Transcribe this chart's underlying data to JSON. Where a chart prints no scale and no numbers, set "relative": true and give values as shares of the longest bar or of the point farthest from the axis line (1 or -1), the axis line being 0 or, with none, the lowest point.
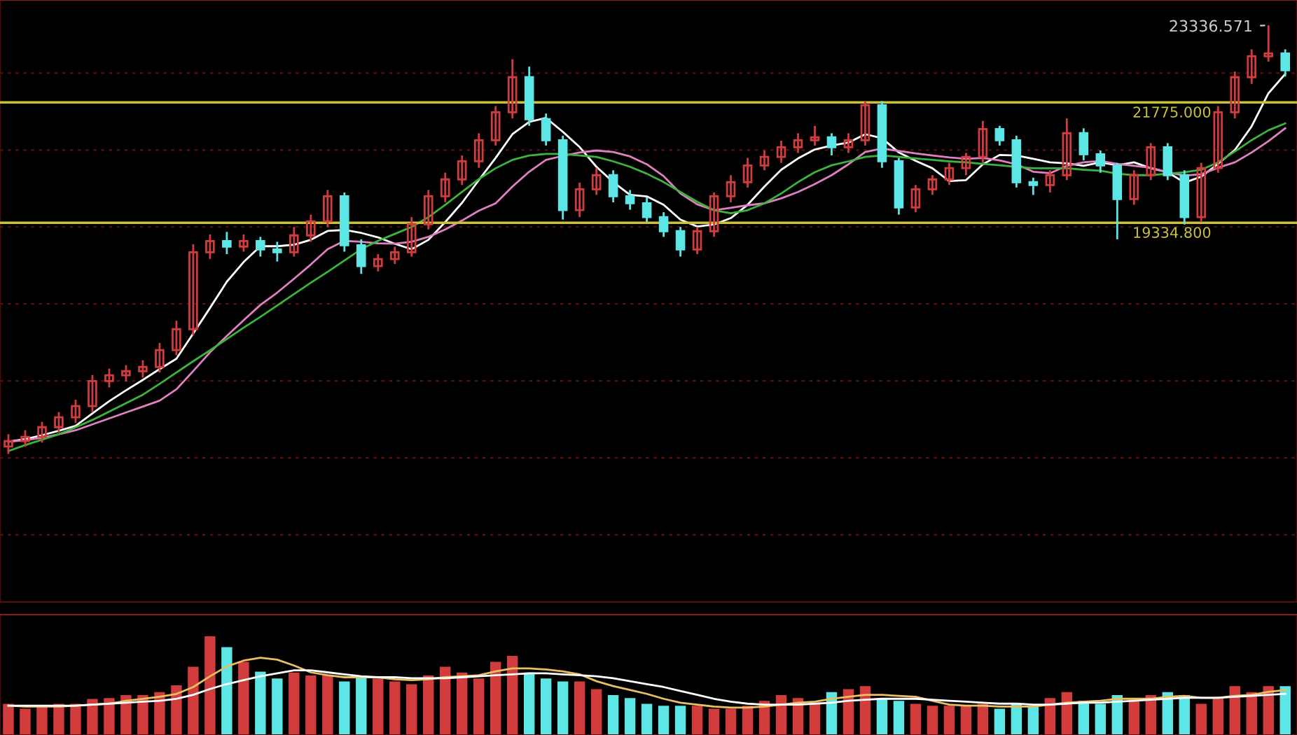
{
  "chart_data": [
    {
      "type": "candlestick",
      "grid": "y",
      "categories": [
        null,
        null,
        null,
        null,
        null,
        null,
        null,
        null,
        null,
        null,
        null,
        null,
        null,
        null,
        null,
        null,
        null,
        null,
        null,
        null,
        null,
        null,
        null,
        null,
        null,
        null,
        null,
        null,
        null,
        null,
        null,
        null,
        null,
        null,
        null,
        null,
        null,
        null,
        null,
        null,
        null,
        null,
        null,
        null,
        null,
        null,
        null,
        null,
        null,
        null,
        null,
        null,
        null,
        null,
        null,
        null,
        null,
        null,
        null,
        null,
        null,
        null,
        null,
        null,
        null,
        null,
        null,
        null,
        null,
        null,
        null,
        null,
        null,
        null,
        null,
        null,
        null
      ],
      "ylim": [
        11650,
        23850
      ],
      "yticks": [
        {
          "value": 13010,
          "label": null
        },
        {
          "value": 14570,
          "label": null
        },
        {
          "value": 16130,
          "label": null
        },
        {
          "value": 17690,
          "label": null
        },
        {
          "value": 19250,
          "label": null
        },
        {
          "value": 20810,
          "label": null
        },
        {
          "value": 22370,
          "label": null
        }
      ],
      "ohlc": [
        [
          14800,
          15050,
          14650,
          14910
        ],
        [
          14910,
          15130,
          14800,
          14995
        ],
        [
          14995,
          15300,
          14880,
          15193
        ],
        [
          15193,
          15500,
          15080,
          15392
        ],
        [
          15392,
          15750,
          15280,
          15619
        ],
        [
          15619,
          16250,
          15500,
          16129
        ],
        [
          16129,
          16380,
          16000,
          16243
        ],
        [
          16243,
          16450,
          16120,
          16328
        ],
        [
          16328,
          16550,
          16200,
          16413
        ],
        [
          16413,
          16900,
          16300,
          16754
        ],
        [
          16754,
          17350,
          16650,
          17179
        ],
        [
          17179,
          18900,
          17050,
          18739
        ],
        [
          18739,
          19100,
          18600,
          18966
        ],
        [
          18966,
          19150,
          18700,
          18853
        ],
        [
          18853,
          19100,
          18750,
          18966
        ],
        [
          18966,
          19050,
          18650,
          18796
        ],
        [
          18796,
          18950,
          18550,
          18739
        ],
        [
          18739,
          19250,
          18650,
          19080
        ],
        [
          19080,
          19500,
          18950,
          19364
        ],
        [
          19364,
          20000,
          19250,
          19874
        ],
        [
          19874,
          19950,
          18750,
          18881
        ],
        [
          18881,
          19000,
          18300,
          18456
        ],
        [
          18456,
          18700,
          18350,
          18598
        ],
        [
          18598,
          18850,
          18500,
          18739
        ],
        [
          18739,
          19450,
          18650,
          19307
        ],
        [
          19307,
          20000,
          19200,
          19874
        ],
        [
          19874,
          20350,
          19750,
          20215
        ],
        [
          20215,
          20700,
          20100,
          20583
        ],
        [
          20583,
          21150,
          20450,
          21009
        ],
        [
          21009,
          21700,
          20900,
          21576
        ],
        [
          21576,
          22650,
          21450,
          22286
        ],
        [
          22286,
          22500,
          21300,
          21435
        ],
        [
          21435,
          21550,
          20900,
          21009
        ],
        [
          21009,
          21100,
          19400,
          19591
        ],
        [
          19591,
          20150,
          19450,
          20016
        ],
        [
          20016,
          20450,
          19900,
          20300
        ],
        [
          20300,
          20400,
          19750,
          19874
        ],
        [
          19874,
          20000,
          19600,
          19732
        ],
        [
          19732,
          19850,
          19350,
          19449
        ],
        [
          19449,
          19550,
          19050,
          19165
        ],
        [
          19165,
          19250,
          18650,
          18796
        ],
        [
          18796,
          19250,
          18700,
          19165
        ],
        [
          19165,
          19950,
          19050,
          19874
        ],
        [
          19874,
          20300,
          19750,
          20158
        ],
        [
          20158,
          20650,
          20050,
          20498
        ],
        [
          20498,
          20800,
          20400,
          20669
        ],
        [
          20669,
          21000,
          20550,
          20867
        ],
        [
          20867,
          21150,
          20750,
          21009
        ],
        [
          21009,
          21300,
          20900,
          21066
        ],
        [
          21066,
          21150,
          20700,
          20867
        ],
        [
          20867,
          21150,
          20750,
          21009
        ],
        [
          21009,
          21800,
          20900,
          21718
        ],
        [
          21718,
          21800,
          20450,
          20583
        ],
        [
          20583,
          20650,
          19500,
          19647
        ],
        [
          19647,
          20100,
          19550,
          20016
        ],
        [
          20016,
          20300,
          19900,
          20215
        ],
        [
          20215,
          20550,
          20100,
          20442
        ],
        [
          20442,
          20750,
          20300,
          20669
        ],
        [
          20669,
          21400,
          20550,
          21236
        ],
        [
          21236,
          21300,
          20900,
          21009
        ],
        [
          21009,
          21100,
          20050,
          20158
        ],
        [
          20158,
          20250,
          19900,
          20101
        ],
        [
          20101,
          20400,
          19950,
          20300
        ],
        [
          20300,
          21450,
          20200,
          21151
        ],
        [
          21151,
          21250,
          20600,
          20725
        ],
        [
          20725,
          20800,
          20350,
          20498
        ],
        [
          20498,
          20550,
          19000,
          19817
        ],
        [
          19817,
          20400,
          19700,
          20300
        ],
        [
          20300,
          20950,
          20200,
          20867
        ],
        [
          20867,
          20950,
          20200,
          20300
        ],
        [
          20300,
          20400,
          19300,
          19449
        ],
        [
          19449,
          20550,
          19350,
          20442
        ],
        [
          20442,
          21700,
          20350,
          21576
        ],
        [
          21576,
          22400,
          21450,
          22286
        ],
        [
          22286,
          22850,
          22150,
          22711
        ],
        [
          22711,
          23336.571,
          22600,
          22768
        ],
        [
          22768,
          22850,
          22300,
          22428
        ]
      ],
      "colors": [
        "#d23c3c",
        "#d23c3c",
        "#d23c3c",
        "#d23c3c",
        "#d23c3c",
        "#d23c3c",
        "#d23c3c",
        "#d23c3c",
        "#d23c3c",
        "#d23c3c",
        "#d23c3c",
        "#d23c3c",
        "#d23c3c",
        "#5ce6e6",
        "#d23c3c",
        "#5ce6e6",
        "#5ce6e6",
        "#d23c3c",
        "#d23c3c",
        "#d23c3c",
        "#5ce6e6",
        "#5ce6e6",
        "#d23c3c",
        "#d23c3c",
        "#d23c3c",
        "#d23c3c",
        "#d23c3c",
        "#d23c3c",
        "#d23c3c",
        "#d23c3c",
        "#d23c3c",
        "#5ce6e6",
        "#5ce6e6",
        "#5ce6e6",
        "#d23c3c",
        "#d23c3c",
        "#5ce6e6",
        "#5ce6e6",
        "#5ce6e6",
        "#5ce6e6",
        "#5ce6e6",
        "#d23c3c",
        "#d23c3c",
        "#d23c3c",
        "#d23c3c",
        "#d23c3c",
        "#d23c3c",
        "#d23c3c",
        "#d23c3c",
        "#5ce6e6",
        "#d23c3c",
        "#d23c3c",
        "#5ce6e6",
        "#5ce6e6",
        "#d23c3c",
        "#d23c3c",
        "#d23c3c",
        "#d23c3c",
        "#d23c3c",
        "#5ce6e6",
        "#5ce6e6",
        "#5ce6e6",
        "#d23c3c",
        "#d23c3c",
        "#5ce6e6",
        "#5ce6e6",
        "#5ce6e6",
        "#d23c3c",
        "#d23c3c",
        "#5ce6e6",
        "#5ce6e6",
        "#d23c3c",
        "#d23c3c",
        "#d23c3c",
        "#d23c3c",
        "#d23c3c",
        "#5ce6e6"
      ],
      "series": [
        {
          "type": "line",
          "color": "#ffffff",
          "values": [
            14900,
            14950,
            15030,
            15120,
            15220,
            15470,
            15720,
            15940,
            16150,
            16370,
            16580,
            17090,
            17610,
            18140,
            18540,
            18860,
            18860,
            18890,
            18990,
            19170,
            19190,
            19130,
            19040,
            18910,
            18800,
            18990,
            19350,
            19740,
            20200,
            20650,
            21130,
            21380,
            21460,
            21180,
            20870,
            20470,
            20160,
            19900,
            19870,
            19700,
            19400,
            19260,
            19300,
            19430,
            19700,
            20070,
            20410,
            20640,
            20820,
            20900,
            20960,
            21130,
            21050,
            20760,
            20590,
            20440,
            20180,
            20200,
            20520,
            20710,
            20700,
            20630,
            20560,
            20540,
            20490,
            20560,
            20500,
            20560,
            20440,
            20360,
            20150,
            20270,
            20530,
            20810,
            21290,
            21960,
            22350
          ]
        },
        {
          "type": "line",
          "color": "#e080c0",
          "values": [
            14900,
            14930,
            14980,
            15050,
            15130,
            15250,
            15370,
            15490,
            15610,
            15730,
            15960,
            16330,
            16710,
            17040,
            17360,
            17670,
            17920,
            18200,
            18490,
            18800,
            18970,
            18950,
            18920,
            18910,
            18950,
            19050,
            19200,
            19380,
            19580,
            19730,
            20070,
            20370,
            20610,
            20690,
            20760,
            20800,
            20770,
            20680,
            20520,
            20280,
            19930,
            19710,
            19590,
            19640,
            19690,
            19730,
            19830,
            19960,
            20120,
            20300,
            20520,
            20770,
            20840,
            20790,
            20740,
            20700,
            20660,
            20630,
            20650,
            20600,
            20520,
            20370,
            20340,
            20490,
            20560,
            20590,
            20530,
            20490,
            20450,
            20360,
            20290,
            20320,
            20450,
            20560,
            20760,
            20990,
            21250
          ]
        },
        {
          "type": "line",
          "color": "#3cb43c",
          "values": [
            14710,
            14830,
            14940,
            15050,
            15190,
            15340,
            15510,
            15680,
            15850,
            16070,
            16300,
            16530,
            16750,
            16980,
            17210,
            17430,
            17660,
            17890,
            18120,
            18340,
            18570,
            18800,
            18970,
            19110,
            19250,
            19450,
            19700,
            19960,
            20220,
            20440,
            20610,
            20700,
            20730,
            20730,
            20700,
            20670,
            20580,
            20470,
            20330,
            20160,
            19960,
            19760,
            19590,
            19530,
            19590,
            19730,
            19930,
            20160,
            20360,
            20500,
            20580,
            20670,
            20700,
            20670,
            20640,
            20610,
            20580,
            20560,
            20530,
            20500,
            20470,
            20440,
            20440,
            20440,
            20410,
            20390,
            20330,
            20300,
            20300,
            20330,
            20360,
            20410,
            20560,
            20780,
            21010,
            21210,
            21350
          ]
        }
      ],
      "ref_lines": [
        {
          "axis": "y",
          "value": 21775,
          "label": "21775.000",
          "color": "#c8c03c"
        },
        {
          "axis": "y",
          "value": 19334.8,
          "label": "19334.800",
          "color": "#c8c03c"
        }
      ],
      "annotations": [
        "23336.571"
      ]
    },
    {
      "type": "bar",
      "relative": true,
      "categories": [
        null,
        null,
        null,
        null,
        null,
        null,
        null,
        null,
        null,
        null,
        null,
        null,
        null,
        null,
        null,
        null,
        null,
        null,
        null,
        null,
        null,
        null,
        null,
        null,
        null,
        null,
        null,
        null,
        null,
        null,
        null,
        null,
        null,
        null,
        null,
        null,
        null,
        null,
        null,
        null,
        null,
        null,
        null,
        null,
        null,
        null,
        null,
        null,
        null,
        null,
        null,
        null,
        null,
        null,
        null,
        null,
        null,
        null,
        null,
        null,
        null,
        null,
        null,
        null,
        null,
        null,
        null,
        null,
        null,
        null,
        null,
        null,
        null,
        null,
        null,
        null,
        null
      ],
      "series": [
        {
          "type": "bar",
          "values": [
            0.31,
            0.26,
            0.29,
            0.31,
            0.31,
            0.36,
            0.37,
            0.4,
            0.4,
            0.43,
            0.5,
            0.69,
            1.0,
            0.89,
            0.74,
            0.64,
            0.57,
            0.63,
            0.6,
            0.6,
            0.54,
            0.6,
            0.57,
            0.54,
            0.51,
            0.6,
            0.69,
            0.63,
            0.57,
            0.74,
            0.8,
            0.63,
            0.57,
            0.54,
            0.54,
            0.46,
            0.4,
            0.37,
            0.31,
            0.29,
            0.29,
            0.29,
            0.26,
            0.26,
            0.29,
            0.34,
            0.4,
            0.37,
            0.31,
            0.43,
            0.46,
            0.49,
            0.36,
            0.34,
            0.31,
            0.29,
            0.29,
            0.29,
            0.31,
            0.26,
            0.31,
            0.29,
            0.37,
            0.43,
            0.34,
            0.31,
            0.4,
            0.37,
            0.4,
            0.43,
            0.4,
            0.31,
            0.37,
            0.49,
            0.43,
            0.49,
            0.49
          ],
          "colors": [
            "#d23c3c",
            "#d23c3c",
            "#d23c3c",
            "#d23c3c",
            "#d23c3c",
            "#d23c3c",
            "#d23c3c",
            "#d23c3c",
            "#d23c3c",
            "#d23c3c",
            "#d23c3c",
            "#d23c3c",
            "#d23c3c",
            "#5ce6e6",
            "#d23c3c",
            "#5ce6e6",
            "#5ce6e6",
            "#d23c3c",
            "#d23c3c",
            "#d23c3c",
            "#5ce6e6",
            "#5ce6e6",
            "#d23c3c",
            "#d23c3c",
            "#d23c3c",
            "#d23c3c",
            "#d23c3c",
            "#d23c3c",
            "#d23c3c",
            "#d23c3c",
            "#d23c3c",
            "#5ce6e6",
            "#5ce6e6",
            "#5ce6e6",
            "#d23c3c",
            "#d23c3c",
            "#5ce6e6",
            "#5ce6e6",
            "#5ce6e6",
            "#5ce6e6",
            "#5ce6e6",
            "#d23c3c",
            "#d23c3c",
            "#d23c3c",
            "#d23c3c",
            "#d23c3c",
            "#d23c3c",
            "#d23c3c",
            "#d23c3c",
            "#5ce6e6",
            "#d23c3c",
            "#d23c3c",
            "#5ce6e6",
            "#5ce6e6",
            "#d23c3c",
            "#d23c3c",
            "#d23c3c",
            "#d23c3c",
            "#d23c3c",
            "#5ce6e6",
            "#5ce6e6",
            "#5ce6e6",
            "#d23c3c",
            "#d23c3c",
            "#5ce6e6",
            "#5ce6e6",
            "#5ce6e6",
            "#d23c3c",
            "#d23c3c",
            "#5ce6e6",
            "#5ce6e6",
            "#d23c3c",
            "#d23c3c",
            "#d23c3c",
            "#d23c3c",
            "#d23c3c",
            "#5ce6e6"
          ]
        },
        {
          "type": "line",
          "color": "#e8c060",
          "values": [
            0.3,
            0.29,
            0.29,
            0.29,
            0.3,
            0.31,
            0.32,
            0.35,
            0.37,
            0.39,
            0.42,
            0.49,
            0.6,
            0.7,
            0.76,
            0.79,
            0.77,
            0.71,
            0.64,
            0.61,
            0.59,
            0.59,
            0.59,
            0.57,
            0.56,
            0.57,
            0.59,
            0.6,
            0.61,
            0.65,
            0.68,
            0.68,
            0.67,
            0.65,
            0.62,
            0.55,
            0.5,
            0.46,
            0.42,
            0.37,
            0.33,
            0.31,
            0.29,
            0.28,
            0.28,
            0.29,
            0.31,
            0.33,
            0.34,
            0.37,
            0.39,
            0.41,
            0.41,
            0.4,
            0.39,
            0.35,
            0.31,
            0.3,
            0.3,
            0.29,
            0.29,
            0.29,
            0.31,
            0.33,
            0.34,
            0.35,
            0.37,
            0.37,
            0.37,
            0.39,
            0.4,
            0.38,
            0.38,
            0.4,
            0.41,
            0.44,
            0.46
          ]
        },
        {
          "type": "line",
          "color": "#ffffff",
          "values": [
            0.3,
            0.3,
            0.3,
            0.3,
            0.3,
            0.31,
            0.32,
            0.33,
            0.34,
            0.35,
            0.37,
            0.41,
            0.47,
            0.52,
            0.56,
            0.6,
            0.63,
            0.66,
            0.66,
            0.64,
            0.62,
            0.6,
            0.59,
            0.59,
            0.58,
            0.58,
            0.58,
            0.59,
            0.6,
            0.61,
            0.62,
            0.63,
            0.63,
            0.62,
            0.61,
            0.6,
            0.58,
            0.55,
            0.52,
            0.49,
            0.45,
            0.41,
            0.37,
            0.34,
            0.32,
            0.31,
            0.31,
            0.31,
            0.32,
            0.33,
            0.35,
            0.36,
            0.37,
            0.37,
            0.37,
            0.36,
            0.35,
            0.34,
            0.33,
            0.32,
            0.32,
            0.31,
            0.31,
            0.32,
            0.33,
            0.33,
            0.34,
            0.35,
            0.36,
            0.37,
            0.38,
            0.38,
            0.38,
            0.39,
            0.4,
            0.41,
            0.42
          ]
        }
      ]
    }
  ]
}
